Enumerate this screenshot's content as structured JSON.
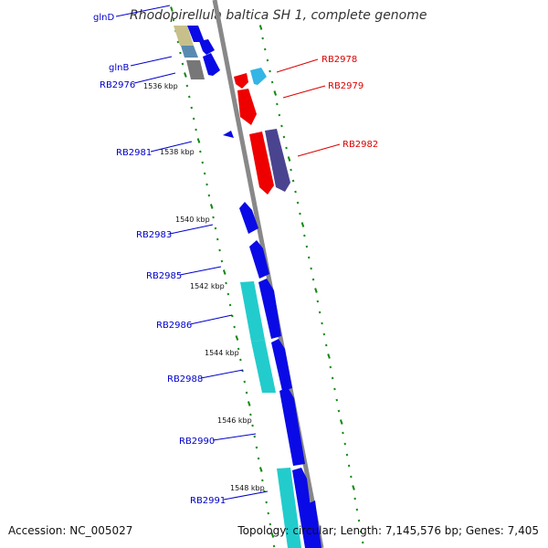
{
  "title": "Rhodopirellula baltica SH 1, complete genome",
  "accession": "Accession: NC_005027",
  "topology": "Topology: circular; Length: 7,145,576 bp; Genes: 7,405",
  "colors": {
    "forward_label": "#0000cc",
    "reverse_label": "#dd0000",
    "backbone": "#888888",
    "tick": "#118811",
    "gene_blue": "#0a0ae6",
    "gene_cyan": "#22cccc",
    "gene_red": "#ee0000",
    "gene_purple": "#4a4490",
    "gene_khaki": "#c8c08a",
    "gene_gray": "#777777",
    "gene_steel": "#5a8ab0",
    "gene_lightblue": "#33b5e5"
  },
  "scale_labels": [
    "1536 kbp",
    "1538 kbp",
    "1540 kbp",
    "1542 kbp",
    "1544 kbp",
    "1546 kbp",
    "1548 kbp"
  ],
  "forward_gene_labels": [
    "glnD",
    "glnB",
    "RB2976",
    "RB2981",
    "RB2983",
    "RB2985",
    "RB2986",
    "RB2988",
    "RB2990",
    "RB2991"
  ],
  "reverse_gene_labels": [
    "RB2978",
    "RB2979",
    "RB2982"
  ]
}
